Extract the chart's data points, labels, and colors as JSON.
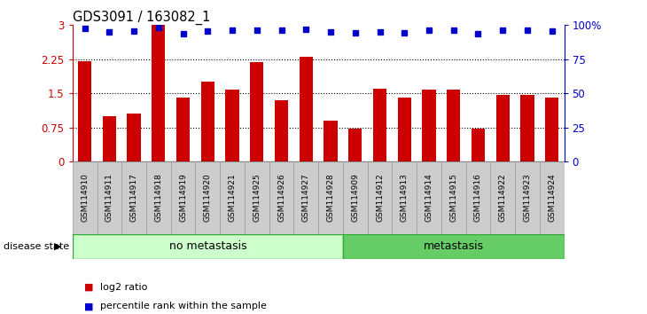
{
  "title": "GDS3091 / 163082_1",
  "samples": [
    "GSM114910",
    "GSM114911",
    "GSM114917",
    "GSM114918",
    "GSM114919",
    "GSM114920",
    "GSM114921",
    "GSM114925",
    "GSM114926",
    "GSM114927",
    "GSM114928",
    "GSM114909",
    "GSM114912",
    "GSM114913",
    "GSM114914",
    "GSM114915",
    "GSM114916",
    "GSM114922",
    "GSM114923",
    "GSM114924"
  ],
  "log2_ratio": [
    2.2,
    1.0,
    1.05,
    3.0,
    1.4,
    1.75,
    1.58,
    2.18,
    1.35,
    2.3,
    0.9,
    0.72,
    1.6,
    1.4,
    1.58,
    1.58,
    0.72,
    1.47,
    1.47,
    1.4
  ],
  "percentile_y": [
    2.92,
    2.85,
    2.87,
    2.95,
    2.82,
    2.87,
    2.88,
    2.89,
    2.88,
    2.9,
    2.85,
    2.83,
    2.86,
    2.84,
    2.88,
    2.88,
    2.82,
    2.88,
    2.88,
    2.87
  ],
  "bar_color": "#cc0000",
  "dot_color": "#0000cc",
  "ylim": [
    0,
    3.0
  ],
  "yticks_left": [
    0,
    0.75,
    1.5,
    2.25,
    3.0
  ],
  "yticks_left_labels": [
    "0",
    "0.75",
    "1.5",
    "2.25",
    "3"
  ],
  "yticks_right_labels": [
    "0",
    "25",
    "50",
    "75",
    "100%"
  ],
  "group1_count": 11,
  "group2_count": 9,
  "group1_label": "no metastasis",
  "group2_label": "metastasis",
  "group1_color": "#ccffcc",
  "group2_color": "#66cc66",
  "group_edge_color": "#33aa33",
  "disease_state_label": "disease state",
  "legend1": "log2 ratio",
  "legend2": "percentile rank within the sample",
  "xtick_bg_color": "#cccccc",
  "xtick_edge_color": "#999999",
  "hgrid_vals": [
    0.75,
    1.5,
    2.25
  ],
  "bar_width": 0.55
}
